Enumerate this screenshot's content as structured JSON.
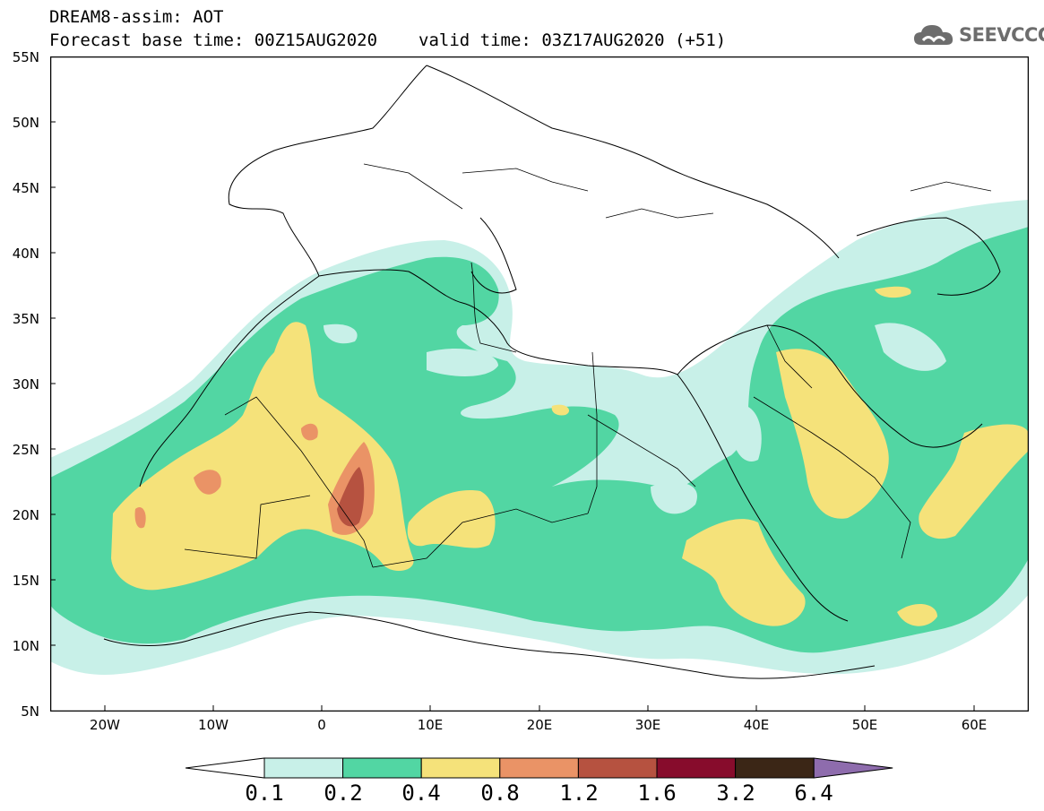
{
  "header": {
    "title": "DREAM8-assim: AOT",
    "base_time": "Forecast base time: 00Z15AUG2020",
    "valid_time": "valid time: 03Z17AUG2020 (+51)"
  },
  "logo": {
    "text": "SEEVCCC",
    "icon": "cloud-icon"
  },
  "map": {
    "lat_labels": [
      "55N",
      "50N",
      "45N",
      "40N",
      "35N",
      "30N",
      "25N",
      "20N",
      "15N",
      "10N",
      "5N"
    ],
    "lon_labels": [
      "20W",
      "10W",
      "0",
      "10E",
      "20E",
      "30E",
      "40E",
      "50E",
      "60E"
    ]
  },
  "colorbar": {
    "labels": [
      "0.1",
      "0.2",
      "0.4",
      "0.8",
      "1.2",
      "1.6",
      "3.2",
      "6.4"
    ],
    "colors": [
      "#ffffff",
      "#c8f0e8",
      "#52d6a3",
      "#f5e27a",
      "#ea9366",
      "#b65240",
      "#870c2c",
      "#3b2616",
      "#8e6cad"
    ]
  }
}
